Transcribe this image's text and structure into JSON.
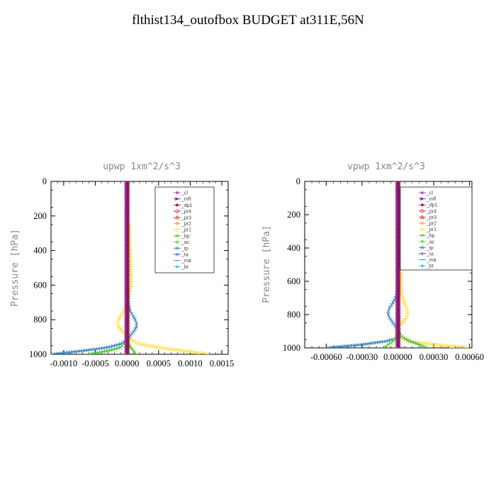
{
  "page_title": "flthist134_outofbox  BUDGET at311E,56N",
  "legend": [
    {
      "name": "_cl",
      "color": "#9a3fbf",
      "marker": "star"
    },
    {
      "name": "_mfl",
      "color": "#6a2f96",
      "marker": "arrow"
    },
    {
      "name": "_dp1",
      "color": "#a0104a",
      "marker": "diamond"
    },
    {
      "name": "_pr4",
      "color": "#e0304a",
      "marker": "circle"
    },
    {
      "name": "_pr3",
      "color": "#e8202e",
      "marker": "tri"
    },
    {
      "name": "_pr2",
      "color": "#ffa040",
      "marker": "star"
    },
    {
      "name": "_pr1",
      "color": "#ffe040",
      "marker": "circle"
    },
    {
      "name": "_bp",
      "color": "#40c030",
      "marker": "x"
    },
    {
      "name": "_ac",
      "color": "#60e040",
      "marker": "diamond"
    },
    {
      "name": "_tp",
      "color": "#3080c0",
      "marker": "x"
    },
    {
      "name": "_ta",
      "color": "#2030c0",
      "marker": "plus"
    },
    {
      "name": "_ma",
      "color": "#3090d0",
      "marker": "dash"
    },
    {
      "name": "_bt",
      "color": "#30d0f0",
      "marker": "diamond"
    }
  ],
  "chart_data": [
    {
      "type": "line",
      "title": "upwp   1xm^2/s^3",
      "ylabel": "Pressure [hPa]",
      "xlabel": "",
      "xlim": [
        -0.0012,
        0.0016
      ],
      "ylim": [
        1000,
        0
      ],
      "x_ticks": [
        -0.001,
        -0.0005,
        0.0,
        0.0005,
        0.001,
        0.0015
      ],
      "x_tick_labels": [
        "-0.0010",
        "-0.0005",
        "0.0000",
        "0.0005",
        "0.0010",
        "0.0015"
      ],
      "y_ticks": [
        0,
        200,
        400,
        600,
        800,
        1000
      ],
      "y_tick_labels": [
        "0",
        "200",
        "400",
        "600",
        "800",
        "1000"
      ],
      "series": [
        {
          "name": "_pr1",
          "y": [
            250,
            400,
            600,
            700,
            750,
            780,
            800,
            820,
            840,
            860,
            880,
            900,
            920,
            940,
            960,
            980,
            1000
          ],
          "x": [
            3e-05,
            5e-05,
            7e-05,
            0.0,
            -5e-05,
            -0.0001,
            -0.00013,
            -0.00015,
            -0.00013,
            -9e-05,
            -4e-05,
            2e-05,
            8e-05,
            0.0002,
            0.0005,
            0.0009,
            0.0013
          ]
        },
        {
          "name": "_tp",
          "y": [
            600,
            700,
            750,
            780,
            800,
            820,
            840,
            860,
            880,
            900,
            920,
            940,
            960,
            980,
            1000
          ],
          "x": [
            0.0,
            2e-05,
            5e-05,
            0.0001,
            0.00013,
            0.00015,
            0.00015,
            0.00012,
            8e-05,
            4e-05,
            0.0,
            -0.0001,
            -0.0003,
            -0.0007,
            -0.0012
          ]
        },
        {
          "name": "_bp",
          "y": [
            900,
            920,
            940,
            960,
            980,
            1000
          ],
          "x": [
            0.0,
            -2e-05,
            -5e-05,
            -0.0001,
            -0.0003,
            -0.0006
          ]
        },
        {
          "name": "_ac",
          "y": [
            900,
            920,
            940,
            960,
            980,
            1000
          ],
          "x": [
            0.0,
            1e-05,
            3e-05,
            6e-05,
            0.0001,
            0.00015
          ]
        },
        {
          "name": "_pr3",
          "y": [
            0,
            200,
            400,
            600,
            800,
            1000
          ],
          "x": [
            2e-05,
            2e-05,
            2e-05,
            2e-05,
            2e-05,
            2e-05
          ]
        },
        {
          "name": "_cl",
          "y": [
            0,
            200,
            400,
            600,
            800,
            1000
          ],
          "x": [
            -2e-05,
            -2e-05,
            -2e-05,
            -2e-05,
            -2e-05,
            -2e-05
          ]
        },
        {
          "name": "_dp1",
          "y": [
            0,
            200,
            400,
            600,
            800,
            1000
          ],
          "x": [
            0.0,
            0.0,
            0.0,
            0.0,
            0.0,
            0.0
          ]
        }
      ]
    },
    {
      "type": "line",
      "title": "vpwp   1xm^2/s^3",
      "ylabel": "Pressure [hPa]",
      "xlabel": "",
      "xlim": [
        -0.00078,
        0.00062
      ],
      "ylim": [
        1000,
        0
      ],
      "x_ticks": [
        -0.0006,
        -0.0003,
        0.0,
        0.0003,
        0.0006
      ],
      "x_tick_labels": [
        "-0.00060",
        "-0.00030",
        "0.00000",
        "0.00030",
        "0.00060"
      ],
      "y_ticks": [
        0,
        200,
        400,
        600,
        800,
        1000
      ],
      "y_tick_labels": [
        "0",
        "200",
        "400",
        "600",
        "800",
        "1000"
      ],
      "series": [
        {
          "name": "_pr1",
          "y": [
            300,
            500,
            650,
            700,
            740,
            760,
            780,
            800,
            820,
            840,
            860,
            880,
            900,
            920,
            940,
            960,
            980,
            1000
          ],
          "x": [
            1e-05,
            2e-05,
            3e-05,
            4e-05,
            6e-05,
            7e-05,
            8e-05,
            8e-05,
            7e-05,
            5e-05,
            2e-05,
            -1e-05,
            -2e-05,
            -1e-05,
            3e-05,
            0.0001,
            0.0003,
            0.0006
          ]
        },
        {
          "name": "_tp",
          "y": [
            650,
            700,
            740,
            760,
            780,
            800,
            820,
            840,
            860,
            880,
            900,
            920,
            940,
            960,
            980,
            1000
          ],
          "x": [
            0.0,
            -2e-05,
            -5e-05,
            -7e-05,
            -8e-05,
            -8e-05,
            -7e-05,
            -5e-05,
            -3e-05,
            -1e-05,
            1e-05,
            2e-05,
            0.0,
            -0.0001,
            -0.0003,
            -0.0006
          ]
        },
        {
          "name": "_bp",
          "y": [
            900,
            920,
            940,
            960,
            980,
            1000
          ],
          "x": [
            0.0,
            2e-05,
            5e-05,
            0.0001,
            0.00018,
            0.00024
          ]
        },
        {
          "name": "_ac",
          "y": [
            900,
            920,
            940,
            960,
            980,
            1000
          ],
          "x": [
            0.0,
            -1e-05,
            -2e-05,
            -4e-05,
            -8e-05,
            -0.00012
          ]
        },
        {
          "name": "_pr3",
          "y": [
            0,
            200,
            400,
            600,
            800,
            1000
          ],
          "x": [
            1e-05,
            1e-05,
            1e-05,
            1e-05,
            1e-05,
            1e-05
          ]
        },
        {
          "name": "_cl",
          "y": [
            0,
            200,
            400,
            600,
            800,
            1000
          ],
          "x": [
            -1e-05,
            -1e-05,
            -1e-05,
            -1e-05,
            -1e-05,
            -1e-05
          ]
        },
        {
          "name": "_dp1",
          "y": [
            0,
            200,
            400,
            600,
            800,
            1000
          ],
          "x": [
            0.0,
            0.0,
            0.0,
            0.0,
            0.0,
            0.0
          ]
        }
      ]
    }
  ]
}
